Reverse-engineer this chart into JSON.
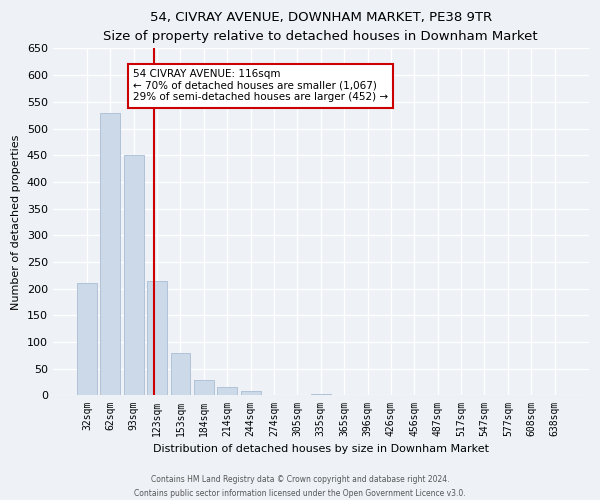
{
  "title": "54, CIVRAY AVENUE, DOWNHAM MARKET, PE38 9TR",
  "subtitle": "Size of property relative to detached houses in Downham Market",
  "xlabel": "Distribution of detached houses by size in Downham Market",
  "ylabel": "Number of detached properties",
  "footer_line1": "Contains HM Land Registry data © Crown copyright and database right 2024.",
  "footer_line2": "Contains public sector information licensed under the Open Government Licence v3.0.",
  "bar_labels": [
    "32sqm",
    "62sqm",
    "93sqm",
    "123sqm",
    "153sqm",
    "184sqm",
    "214sqm",
    "244sqm",
    "274sqm",
    "305sqm",
    "335sqm",
    "365sqm",
    "396sqm",
    "426sqm",
    "456sqm",
    "487sqm",
    "517sqm",
    "547sqm",
    "577sqm",
    "608sqm",
    "638sqm"
  ],
  "bar_values": [
    210,
    530,
    450,
    215,
    80,
    28,
    15,
    8,
    0,
    0,
    3,
    0,
    0,
    0,
    0,
    0,
    1,
    0,
    0,
    1,
    1
  ],
  "bar_color": "#ccd9e8",
  "bar_edgecolor": "#aabdd4",
  "vline_x": 2.85,
  "vline_color": "#cc0000",
  "annotation_title": "54 CIVRAY AVENUE: 116sqm",
  "annotation_line1": "← 70% of detached houses are smaller (1,067)",
  "annotation_line2": "29% of semi-detached houses are larger (452) →",
  "annotation_box_color": "#cc0000",
  "ylim": [
    0,
    650
  ],
  "yticks": [
    0,
    50,
    100,
    150,
    200,
    250,
    300,
    350,
    400,
    450,
    500,
    550,
    600,
    650
  ],
  "background_color": "#eef2f7",
  "plot_background": "#eef2f7",
  "title_fontsize": 9.5,
  "subtitle_fontsize": 8.5
}
